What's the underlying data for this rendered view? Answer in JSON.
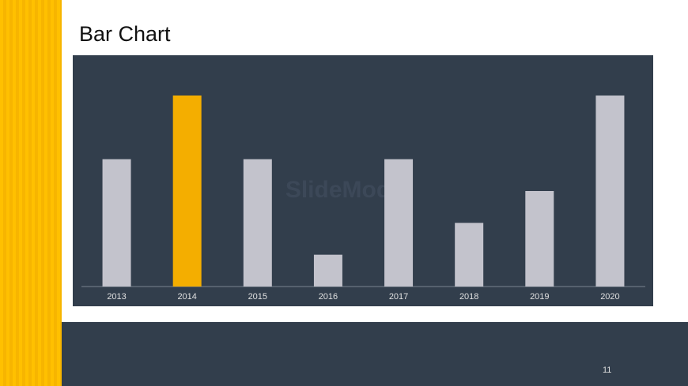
{
  "title": "Bar Chart",
  "page_number": "11",
  "watermark": "SlideModel",
  "chart_data": {
    "type": "bar",
    "categories": [
      "2013",
      "2014",
      "2015",
      "2016",
      "2017",
      "2018",
      "2019",
      "2020"
    ],
    "values": [
      4,
      6,
      4,
      1,
      4,
      2,
      3,
      6
    ],
    "colors": [
      "#c3c3cc",
      "#f4ae00",
      "#c3c3cc",
      "#c3c3cc",
      "#c3c3cc",
      "#c3c3cc",
      "#c3c3cc",
      "#c3c3cc"
    ]
  }
}
